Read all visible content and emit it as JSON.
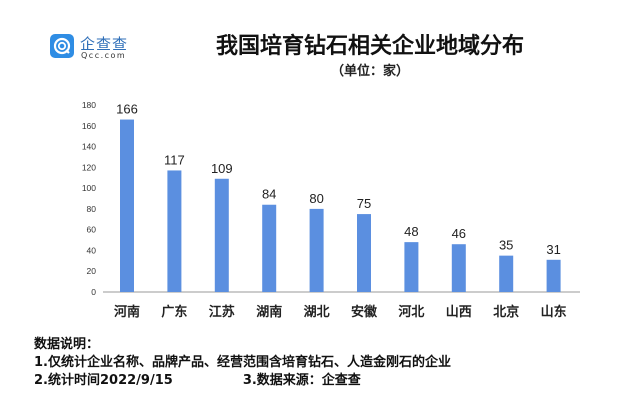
{
  "logo": {
    "name_cn": "企查查",
    "name_en": "Qcc.com"
  },
  "chart_data": {
    "type": "bar",
    "title": "我国培育钻石相关企业地域分布",
    "subtitle": "（单位：家）",
    "categories": [
      "河南",
      "广东",
      "江苏",
      "湖南",
      "湖北",
      "安徽",
      "河北",
      "山西",
      "北京",
      "山东"
    ],
    "values": [
      166,
      117,
      109,
      84,
      80,
      75,
      48,
      46,
      35,
      31
    ],
    "yticks": [
      0,
      20,
      40,
      60,
      80,
      100,
      120,
      140,
      160,
      180
    ],
    "ylim": [
      0,
      180
    ],
    "xlabel": "",
    "ylabel": "",
    "grid": false,
    "bar_color": "#5b8fe0"
  },
  "notes": {
    "heading": "数据说明：",
    "line1": "1.仅统计企业名称、品牌产品、经营范围含培育钻石、人造金刚石的企业",
    "line2_left": "2.统计时间2022/9/15",
    "line2_right": "3.数据来源：企查查"
  }
}
